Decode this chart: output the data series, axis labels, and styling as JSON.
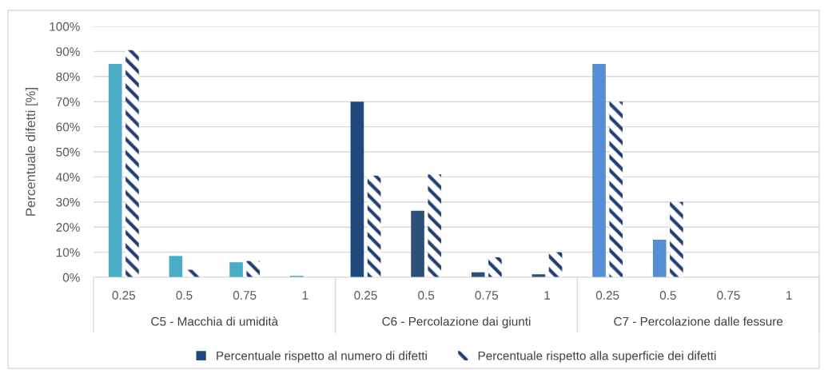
{
  "chart_data": {
    "type": "bar",
    "ylabel": "Percentuale difetti [%]",
    "categories": [
      "0.25",
      "0.5",
      "0.75",
      "1",
      "0.25",
      "0.5",
      "0.75",
      "1",
      "0.25",
      "0.5",
      "0.75",
      "1"
    ],
    "annotations": [
      "C5 - Macchia di umidità",
      "C6 - Percolazione dai giunti",
      "C7 - Percolazione dalle fessure"
    ],
    "series": [
      {
        "name": "Percentuale rispetto al numero di difetti",
        "color": "#1f497d",
        "colors": [
          "#4bacc6",
          "#4bacc6",
          "#4bacc6",
          "#4bacc6",
          "#1f497d",
          "#2c5078",
          "#2c5078",
          "#2c5078",
          "#558ed5",
          "#558ed5",
          "#558ed5",
          "#558ed5"
        ],
        "values": [
          85,
          8.5,
          6,
          0.6,
          70,
          26.5,
          2,
          1.2,
          85,
          15,
          0,
          0
        ]
      },
      {
        "name": "Percentuale rispetto alla superficie dei difetti",
        "color": "#1f3f73",
        "values": [
          90.5,
          3,
          6.5,
          0,
          40.5,
          41,
          8,
          10,
          70,
          30,
          0,
          0
        ]
      }
    ],
    "ylim": [
      0,
      100
    ],
    "yticks": [
      {
        "value": 0,
        "label": "0%"
      },
      {
        "value": 10,
        "label": "10%"
      },
      {
        "value": 20,
        "label": "20%"
      },
      {
        "value": 30,
        "label": "30%"
      },
      {
        "value": 40,
        "label": "40%"
      },
      {
        "value": 50,
        "label": "50%"
      },
      {
        "value": 60,
        "label": "60%"
      },
      {
        "value": 70,
        "label": "70%"
      },
      {
        "value": 80,
        "label": "80%"
      },
      {
        "value": 90,
        "label": "90%"
      },
      {
        "value": 100,
        "label": "100%"
      }
    ],
    "grid": "y",
    "legend": "bottom"
  }
}
